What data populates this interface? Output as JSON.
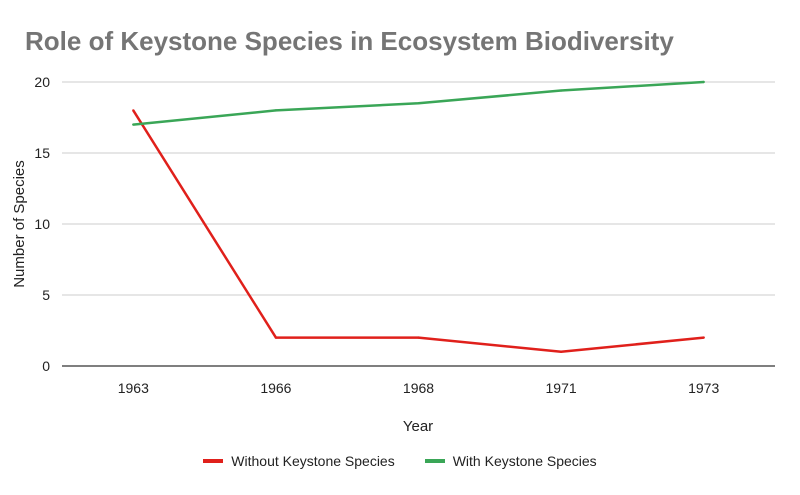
{
  "chart_data": {
    "type": "line",
    "title": "Role of Keystone Species in Ecosystem Biodiversity",
    "xlabel": "Year",
    "ylabel": "Number of Species",
    "categories": [
      "1963",
      "1966",
      "1968",
      "1971",
      "1973"
    ],
    "ylim": [
      0,
      20
    ],
    "yticks": [
      0,
      5,
      10,
      15,
      20
    ],
    "grid": true,
    "legend_position": "bottom",
    "series": [
      {
        "name": "Without Keystone Species",
        "color": "#e0201b",
        "values": [
          18,
          2,
          2,
          1,
          2
        ]
      },
      {
        "name": "With Keystone Species",
        "color": "#3aa657",
        "values": [
          17,
          18,
          18.5,
          19.4,
          20
        ]
      }
    ]
  }
}
